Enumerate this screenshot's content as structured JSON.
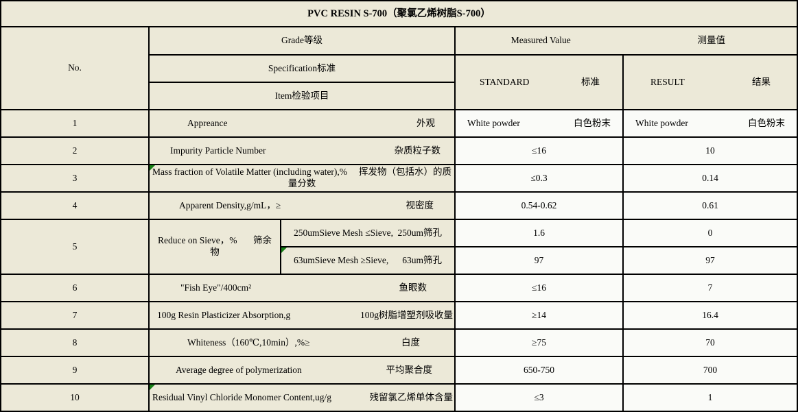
{
  "title": "PVC RESIN S-700（聚氯乙烯树脂S-700）",
  "colors": {
    "cell_beige": "#ECE9D8",
    "cell_white": "#FAFBF8",
    "border": "#000000",
    "flag_green": "#178017"
  },
  "header": {
    "no": "No.",
    "grade": "Grade等级",
    "measured_value_en": "Measured Value",
    "measured_value_zh": "测量值",
    "specification": "Specification标准",
    "item": "Item检验项目",
    "standard_en": "STANDARD",
    "standard_zh": "标准",
    "result_en": "RESULT",
    "result_zh": "结果"
  },
  "rows": [
    {
      "no": "1",
      "item_en": "Appreance",
      "item_zh": "外观",
      "standard_en": "White powder",
      "standard_zh": "白色粉末",
      "result_en": "White powder",
      "result_zh": "白色粉末"
    },
    {
      "no": "2",
      "item_en": "Impurity Particle Number",
      "item_zh": "杂质粒子数",
      "standard": "≤16",
      "result": "10"
    },
    {
      "no": "3",
      "item_en": "Mass fraction of Volatile Matter (including water),%",
      "item_zh_line1": "挥发物（包括水）的质",
      "item_zh_line2": "量分数",
      "standard": "≤0.3",
      "result": "0.14",
      "flag": true
    },
    {
      "no": "4",
      "item_en": "Apparent Density,g/mL，≥",
      "item_zh": "视密度",
      "standard": "0.54-0.62",
      "result": "0.61"
    },
    {
      "no": "5",
      "item_en": "Reduce on Sieve，%",
      "item_zh_line1": "筛余",
      "item_zh_line2": "物",
      "sub_rows": [
        {
          "item_en": "250umSieve Mesh ≤Sieve,",
          "item_zh": "250um筛孔",
          "standard": "1.6",
          "result": "0"
        },
        {
          "item_en": "63umSieve Mesh ≥Sieve,",
          "item_zh": "63um筛孔",
          "standard": "97",
          "result": "97",
          "flag": true
        }
      ]
    },
    {
      "no": "6",
      "item_en": "\"Fish Eye\"/400cm²",
      "item_zh": "鱼眼数",
      "standard": "≤16",
      "result": "7"
    },
    {
      "no": "7",
      "item_en": "100g Resin Plasticizer Absorption,g",
      "item_zh": "100g树脂增塑剂吸收量",
      "standard": "≥14",
      "result": "16.4"
    },
    {
      "no": "8",
      "item_en": "Whiteness（160℃,10min）,%≥",
      "item_zh": "白度",
      "standard": "≥75",
      "result": "70"
    },
    {
      "no": "9",
      "item_en": "Average degree of polymerization",
      "item_zh": "平均聚合度",
      "standard": "650-750",
      "result": "700"
    },
    {
      "no": "10",
      "item_en": "Residual Vinyl Chloride Monomer Content,ug/g",
      "item_zh": "残留氯乙烯单体含量",
      "standard": "≤3",
      "result": "1",
      "flag": true
    }
  ]
}
